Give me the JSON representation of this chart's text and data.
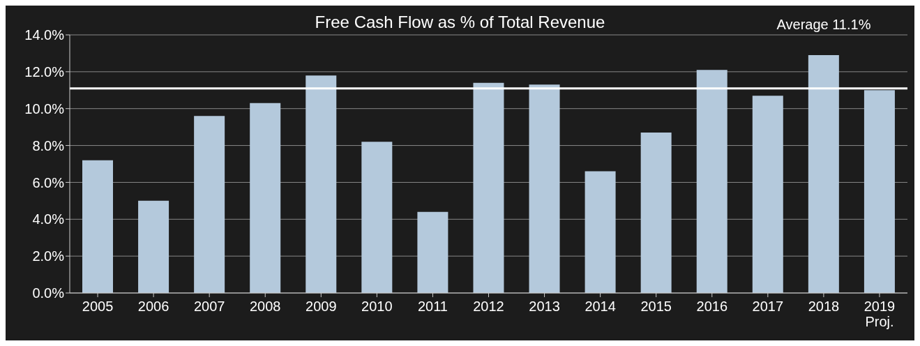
{
  "chart_data": {
    "type": "bar",
    "title": "Free Cash Flow as % of Total Revenue",
    "categories": [
      "2005",
      "2006",
      "2007",
      "2008",
      "2009",
      "2010",
      "2011",
      "2012",
      "2013",
      "2014",
      "2015",
      "2016",
      "2017",
      "2018",
      "2019\nProj."
    ],
    "values": [
      7.2,
      5.0,
      9.6,
      10.3,
      11.8,
      8.2,
      4.4,
      11.4,
      11.3,
      6.6,
      8.7,
      12.1,
      10.7,
      12.9,
      11.0
    ],
    "color": "#b4c9dc",
    "ylim": [
      0,
      14
    ],
    "yticks": [
      {
        "value": 0,
        "label": "0.0%"
      },
      {
        "value": 2,
        "label": "2.0%"
      },
      {
        "value": 4,
        "label": "4.0%"
      },
      {
        "value": 6,
        "label": "6.0%"
      },
      {
        "value": 8,
        "label": "8.0%"
      },
      {
        "value": 10,
        "label": "10.0%"
      },
      {
        "value": 12,
        "label": "12.0%"
      },
      {
        "value": 14,
        "label": "14.0%"
      }
    ],
    "grid": "y",
    "ref_lines": [
      {
        "axis": "y",
        "value": 11.1,
        "label": "Average 11.1%",
        "color": "#ffffff"
      }
    ]
  }
}
